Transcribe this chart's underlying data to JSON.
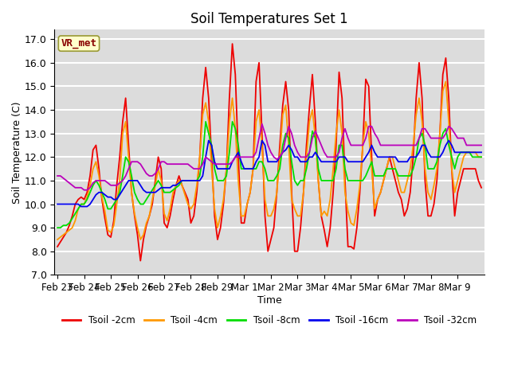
{
  "title": "Soil Temperatures Set 1",
  "xlabel": "Time",
  "ylabel": "Soil Temperature (C)",
  "ylim": [
    7.0,
    17.4
  ],
  "yticks": [
    7.0,
    8.0,
    9.0,
    10.0,
    11.0,
    12.0,
    13.0,
    14.0,
    15.0,
    16.0,
    17.0
  ],
  "bg_color": "#dcdcdc",
  "fig_color": "#ffffff",
  "grid_color": "#ffffff",
  "label_box_text": "VR_met",
  "label_box_facecolor": "#ffffcc",
  "label_box_edgecolor": "#999933",
  "label_box_textcolor": "#880000",
  "series_colors": {
    "Tsoil -2cm": "#ee0000",
    "Tsoil -4cm": "#ff9900",
    "Tsoil -8cm": "#00dd00",
    "Tsoil -16cm": "#0000ee",
    "Tsoil -32cm": "#bb00bb"
  },
  "tick_labels": [
    "Feb 23",
    "Feb 24",
    "Feb 25",
    "Feb 26",
    "Feb 27",
    "Feb 28",
    "Feb 29",
    "Mar 1",
    "Mar 2",
    "Mar 3",
    "Mar 4",
    "Mar 5",
    "Mar 6",
    "Mar 7",
    "Mar 8",
    "Mar 9"
  ],
  "tick_positions": [
    0,
    9,
    18,
    27,
    36,
    45,
    54,
    63,
    72,
    81,
    90,
    99,
    108,
    117,
    126,
    135
  ],
  "n_points": 144
}
